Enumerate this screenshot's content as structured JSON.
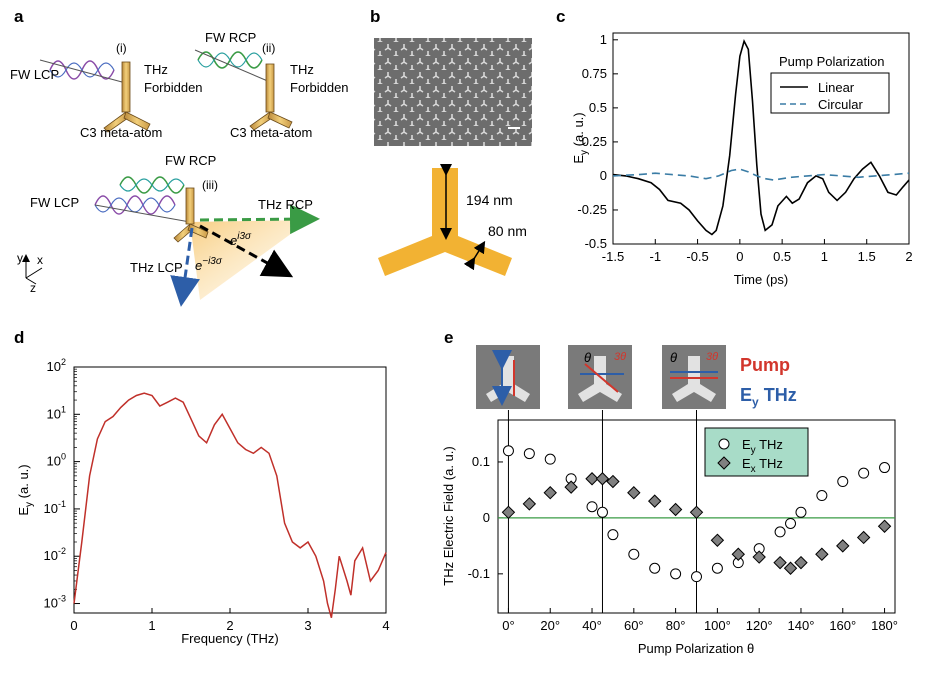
{
  "panels": {
    "a": {
      "letter": "a",
      "fw_lcp_i": "FW LCP",
      "tag_i": "(i)",
      "thz_i": "THz",
      "forbidden_i": "Forbidden",
      "meta_i": "C3 meta-atom",
      "fw_rcp_ii": "FW RCP",
      "tag_ii": "(ii)",
      "thz_ii": "THz",
      "forbidden_ii": "Forbidden",
      "meta_ii": "C3 meta-atom",
      "fw_rcp_iii": "FW RCP",
      "tag_iii": "(iii)",
      "fw_lcp_iii": "FW LCP",
      "thz_rcp": "THz RCP",
      "thz_lcp": "THz LCP",
      "phase_pos": "e",
      "phase_pos_sup": "i3σ",
      "phase_neg": "e",
      "phase_neg_sup": "−i3σ",
      "axis_y": "y",
      "axis_x": "x",
      "axis_z": "z"
    },
    "b": {
      "letter": "b",
      "dim_arm_length": "194 nm",
      "dim_arm_width": "80 nm"
    },
    "c": {
      "letter": "c"
    },
    "d": {
      "letter": "d"
    },
    "e": {
      "letter": "e",
      "pump_label": "Pump",
      "ey_label": "E",
      "ey_sub": "y",
      "ey_thz": "THz",
      "theta": "θ",
      "rot": "3θ"
    }
  },
  "chart_data": [
    {
      "panel": "c",
      "type": "line",
      "xlabel": "Time (ps)",
      "ylabel": "E",
      "ylabel_sub": "y",
      "ylabel_unit": "(a. u.)",
      "xlim": [
        -1.5,
        2
      ],
      "ylim": [
        -0.5,
        1.05
      ],
      "xticks": [
        -1.5,
        -1,
        -0.5,
        0,
        0.5,
        1,
        1.5,
        2
      ],
      "xtick_labels": [
        "-1.5",
        "-1",
        "-0.5",
        "0",
        "0.5",
        "1",
        "1.5",
        "2"
      ],
      "yticks": [
        -0.5,
        -0.25,
        0,
        0.25,
        0.5,
        0.75,
        1
      ],
      "ytick_labels": [
        "-0.5",
        "-0.25",
        "0",
        "0.25",
        "0.5",
        "0.75",
        "1"
      ],
      "legend_title": "Pump Polarization",
      "legend_position": "top-right",
      "grid": false,
      "series": [
        {
          "name": "Linear",
          "color": "#000000",
          "dash": "solid",
          "x": [
            -1.5,
            -1.35,
            -1.2,
            -1.05,
            -0.95,
            -0.85,
            -0.7,
            -0.6,
            -0.5,
            -0.4,
            -0.33,
            -0.28,
            -0.2,
            -0.12,
            -0.05,
            0.0,
            0.05,
            0.1,
            0.15,
            0.2,
            0.25,
            0.3,
            0.38,
            0.45,
            0.55,
            0.62,
            0.7,
            0.8,
            0.9,
            0.98,
            1.05,
            1.15,
            1.25,
            1.35,
            1.45,
            1.55,
            1.65,
            1.75,
            1.85,
            1.93,
            2.0
          ],
          "y": [
            0.01,
            0.0,
            -0.02,
            -0.05,
            -0.1,
            -0.18,
            -0.2,
            -0.25,
            -0.33,
            -0.4,
            -0.43,
            -0.4,
            -0.22,
            0.15,
            0.6,
            0.88,
            0.99,
            0.93,
            0.55,
            0.08,
            -0.28,
            -0.4,
            -0.36,
            -0.22,
            -0.15,
            -0.2,
            -0.17,
            -0.05,
            0.0,
            -0.02,
            -0.12,
            -0.18,
            -0.12,
            -0.02,
            0.05,
            0.1,
            0.0,
            -0.12,
            -0.14,
            -0.08,
            -0.03
          ]
        },
        {
          "name": "Circular",
          "color": "#3a7ca5",
          "dash": "dashed",
          "x": [
            -1.5,
            -1.2,
            -1.0,
            -0.8,
            -0.6,
            -0.4,
            -0.25,
            -0.1,
            0.0,
            0.1,
            0.2,
            0.3,
            0.4,
            0.5,
            0.6,
            0.8,
            1.0,
            1.2,
            1.4,
            1.6,
            1.8,
            2.0
          ],
          "y": [
            0.0,
            0.01,
            0.02,
            0.01,
            0.0,
            -0.02,
            0.0,
            0.04,
            0.05,
            0.03,
            0.0,
            -0.02,
            -0.03,
            -0.02,
            -0.01,
            0.0,
            0.01,
            0.0,
            -0.01,
            0.0,
            0.01,
            0.02
          ]
        }
      ]
    },
    {
      "panel": "d",
      "type": "line",
      "xlabel": "Frequency (THz)",
      "ylabel": "E",
      "ylabel_sub": "y",
      "ylabel_unit": "(a. u.)",
      "xlim": [
        0,
        4
      ],
      "ylim_log10": [
        -3.2,
        2
      ],
      "scale_y": "log",
      "xticks": [
        0,
        1,
        2,
        3,
        4
      ],
      "xtick_labels": [
        "0",
        "1",
        "2",
        "3",
        "4"
      ],
      "ytick_exponents": [
        -3,
        -2,
        -1,
        0,
        1,
        2
      ],
      "ytick_base": "10",
      "grid": false,
      "series": [
        {
          "name": "",
          "color": "#c0302a",
          "x": [
            0.0,
            0.1,
            0.2,
            0.3,
            0.4,
            0.5,
            0.6,
            0.7,
            0.8,
            0.9,
            1.0,
            1.1,
            1.2,
            1.3,
            1.4,
            1.5,
            1.6,
            1.7,
            1.8,
            1.9,
            2.0,
            2.1,
            2.2,
            2.3,
            2.4,
            2.5,
            2.6,
            2.7,
            2.8,
            2.9,
            3.0,
            3.1,
            3.2,
            3.25,
            3.3,
            3.35,
            3.4,
            3.5,
            3.55,
            3.6,
            3.7,
            3.8,
            3.9,
            4.0
          ],
          "y": [
            0.001,
            0.02,
            0.5,
            3,
            7,
            9,
            14,
            20,
            25,
            28,
            25,
            15,
            18,
            22,
            18,
            8,
            3.5,
            2.5,
            6,
            10,
            5,
            2.5,
            1.8,
            1.5,
            2,
            1.5,
            0.5,
            0.05,
            0.02,
            0.015,
            0.02,
            0.01,
            0.003,
            0.001,
            0.0005,
            0.002,
            0.01,
            0.003,
            0.0015,
            0.008,
            0.015,
            0.003,
            0.005,
            0.012
          ]
        }
      ]
    },
    {
      "panel": "e",
      "type": "scatter",
      "xlabel": "Pump Polarization θ",
      "ylabel": "THz Electric Field (a. u.)",
      "xlim": [
        -5,
        185
      ],
      "ylim": [
        -0.17,
        0.175
      ],
      "xticks": [
        0,
        20,
        40,
        60,
        80,
        100,
        120,
        140,
        160,
        180
      ],
      "xtick_labels": [
        "0°",
        "20°",
        "40°",
        "60°",
        "80°",
        "100°",
        "120°",
        "140°",
        "160°",
        "180°"
      ],
      "yticks": [
        -0.1,
        0,
        0.1
      ],
      "ytick_labels": [
        "-0.1",
        "0",
        "0.1"
      ],
      "vlines": [
        0,
        45,
        90
      ],
      "hline": 0,
      "legend_position": "top-right",
      "legend_bg": "#a8dcc8",
      "series": [
        {
          "name": "E",
          "name_sub": "y",
          "name_suffix": "THz",
          "marker": "circle",
          "color": "#ffffff",
          "x": [
            0,
            10,
            20,
            30,
            40,
            45,
            50,
            60,
            70,
            80,
            90,
            100,
            110,
            120,
            130,
            135,
            140,
            150,
            160,
            170,
            180
          ],
          "y": [
            0.12,
            0.115,
            0.105,
            0.07,
            0.02,
            0.01,
            -0.03,
            -0.065,
            -0.09,
            -0.1,
            -0.105,
            -0.09,
            -0.08,
            -0.055,
            -0.025,
            -0.01,
            0.01,
            0.04,
            0.065,
            0.08,
            0.09
          ]
        },
        {
          "name": "E",
          "name_sub": "x",
          "name_suffix": "THz",
          "marker": "diamond",
          "color": "#808080",
          "x": [
            0,
            10,
            20,
            30,
            40,
            45,
            50,
            60,
            70,
            80,
            90,
            100,
            110,
            120,
            130,
            135,
            140,
            150,
            160,
            170,
            180
          ],
          "y": [
            0.01,
            0.025,
            0.045,
            0.055,
            0.07,
            0.07,
            0.065,
            0.045,
            0.03,
            0.015,
            0.01,
            -0.04,
            -0.065,
            -0.07,
            -0.08,
            -0.09,
            -0.08,
            -0.065,
            -0.05,
            -0.035,
            -0.015
          ]
        }
      ]
    }
  ]
}
